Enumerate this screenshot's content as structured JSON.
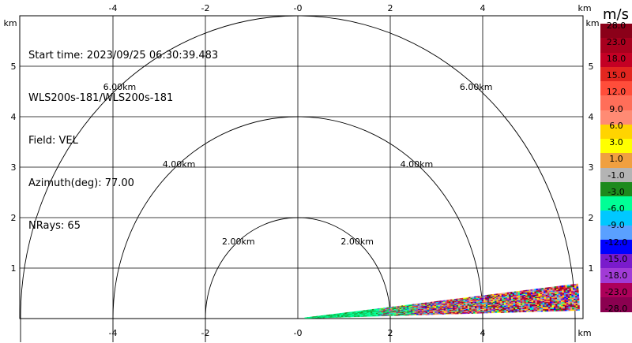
{
  "info": {
    "start_time": "Start time: 2023/09/25 06:30:39.483",
    "instrument": "WLS200s-181/WLS200s-181",
    "field": "Field: VEL",
    "azimuth": "Azimuth(deg): 77.00",
    "nrays": "NRays: 65"
  },
  "axes": {
    "x_unit": "km",
    "y_unit": "km",
    "x_ticks": [
      "-4",
      "-2",
      "-0",
      "2",
      "4"
    ],
    "y_ticks": [
      "1",
      "2",
      "3",
      "4",
      "5"
    ]
  },
  "range_rings": [
    {
      "label": "2.00km",
      "radius": 2
    },
    {
      "label": "4.00km",
      "radius": 4
    },
    {
      "label": "6.00km",
      "radius": 6
    }
  ],
  "colorbar": {
    "unit": "m/s",
    "labels": [
      "28.0",
      "23.0",
      "18.0",
      "15.0",
      "12.0",
      "9.0",
      "6.0",
      "3.0",
      "1.0",
      "-1.0",
      "-3.0",
      "-6.0",
      "-9.0",
      "-12.0",
      "-15.0",
      "-18.0",
      "-23.0",
      "-28.0"
    ],
    "colors": [
      "#8b0019",
      "#a8001e",
      "#c40024",
      "#e2261f",
      "#ff4d3a",
      "#ff6e59",
      "#ff8b74",
      "#ffd400",
      "#ffff00",
      "#f0a040",
      "#b4b4b4",
      "#1d8a1d",
      "#00ff96",
      "#00c8ff",
      "#5aa0ff",
      "#0000ff",
      "#7a1bcc",
      "#a13bd6",
      "#ad005a",
      "#8b0050"
    ]
  },
  "scan": {
    "azimuth_start_deg": 1.5,
    "azimuth_end_deg": 6.5,
    "range_min_km": 0.15,
    "range_max_km": 6.1
  }
}
